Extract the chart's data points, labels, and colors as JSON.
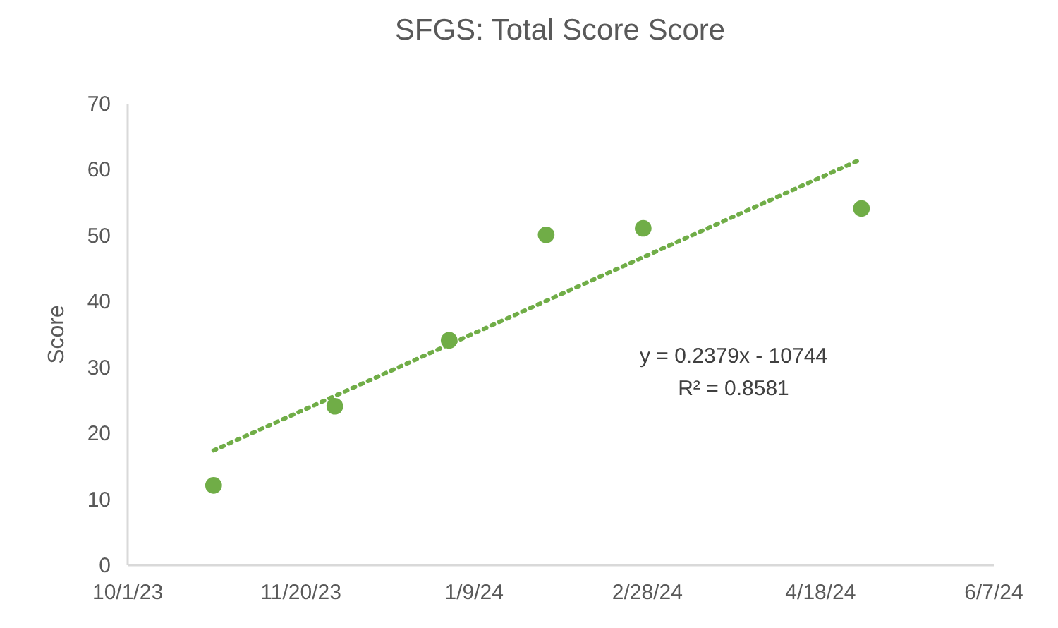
{
  "chart_data": {
    "type": "scatter",
    "title": "SFGS: Total Score Score",
    "ylabel": "Score",
    "xlim": [
      "2023-10-01",
      "2024-06-07"
    ],
    "xticks": [
      {
        "value": "2023-10-01",
        "label": "10/1/23"
      },
      {
        "value": "2023-11-20",
        "label": "11/20/23"
      },
      {
        "value": "2024-01-09",
        "label": "1/9/24"
      },
      {
        "value": "2024-02-28",
        "label": "2/28/24"
      },
      {
        "value": "2024-04-18",
        "label": "4/18/24"
      },
      {
        "value": "2024-06-07",
        "label": "6/7/24"
      }
    ],
    "ylim": [
      0,
      70
    ],
    "yticks": [
      0,
      10,
      20,
      30,
      40,
      50,
      60,
      70
    ],
    "grid": false,
    "series": [
      {
        "color": "#70ad47",
        "marker": "circle",
        "x": [
          "2023-10-26",
          "2023-11-30",
          "2024-01-02",
          "2024-01-30",
          "2024-02-27",
          "2024-04-30"
        ],
        "values": [
          12,
          24,
          34,
          50,
          51,
          54
        ]
      },
      {
        "type": "line",
        "color": "#70ad47",
        "line_style": "dotted",
        "x": [
          "2023-10-26",
          "2024-04-30"
        ],
        "values": [
          17.3,
          61.5
        ]
      }
    ],
    "annotations": [
      "y = 0.2379x - 10744",
      "R² = 0.8581"
    ]
  }
}
